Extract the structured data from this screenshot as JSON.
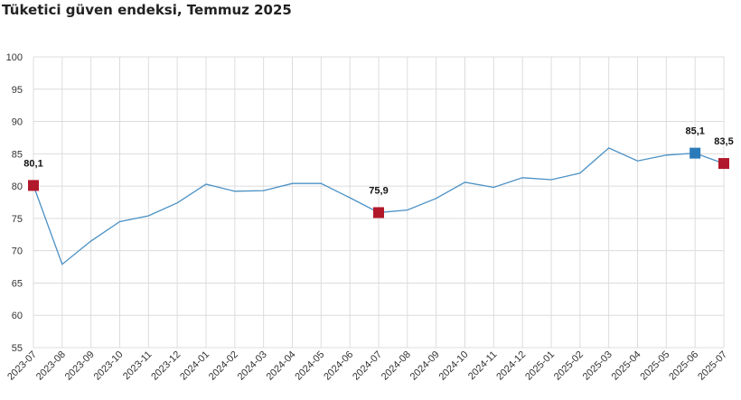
{
  "chart_data": {
    "type": "line",
    "title": "Tüketici güven endeksi, Temmuz 2025",
    "x": [
      "2023-07",
      "2023-08",
      "2023-09",
      "2023-10",
      "2023-11",
      "2023-12",
      "2024-01",
      "2024-02",
      "2024-03",
      "2024-04",
      "2024-05",
      "2024-06",
      "2024-07",
      "2024-08",
      "2024-09",
      "2024-10",
      "2024-11",
      "2024-12",
      "2025-01",
      "2025-02",
      "2025-03",
      "2025-04",
      "2025-05",
      "2025-06",
      "2025-07"
    ],
    "series": [
      {
        "values": [
          80.1,
          67.9,
          71.5,
          74.5,
          75.4,
          77.4,
          80.3,
          79.2,
          79.3,
          80.4,
          80.4,
          78.2,
          75.9,
          76.3,
          78.1,
          80.6,
          79.8,
          81.3,
          81.0,
          82.0,
          85.9,
          83.9,
          84.8,
          85.1,
          83.5
        ],
        "color": "#4a90c4"
      }
    ],
    "ylim": [
      55,
      100
    ],
    "yticks": [
      55,
      60,
      65,
      70,
      75,
      80,
      85,
      90,
      95,
      100
    ],
    "grid": true,
    "highlights": [
      {
        "index": 0,
        "label": "80,1",
        "color": "#b2182b"
      },
      {
        "index": 12,
        "label": "75,9",
        "color": "#b2182b"
      },
      {
        "index": 23,
        "label": "85,1",
        "color": "#2b7bba"
      },
      {
        "index": 24,
        "label": "83,5",
        "color": "#b2182b"
      }
    ]
  }
}
